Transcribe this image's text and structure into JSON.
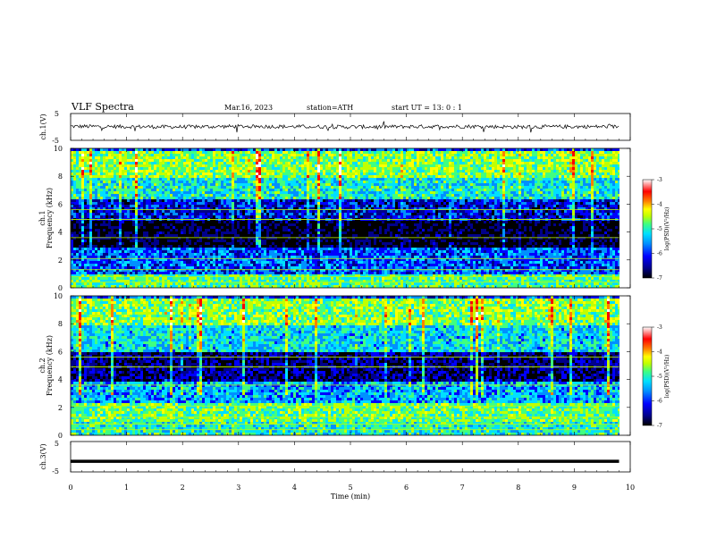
{
  "header": {
    "title": "VLF  Spectra",
    "date": "Mar.16, 2023",
    "station": "station=ATH",
    "start_ut": "start  UT  =   13: 0  : 1"
  },
  "colors": {
    "spectrogram_scale": [
      "#000000",
      "#00008b",
      "#0000ff",
      "#0090ff",
      "#00e0ff",
      "#40ff80",
      "#c0ff00",
      "#ffff00",
      "#ff8000",
      "#ff0000",
      "#ffffff"
    ],
    "trace": "#000000"
  },
  "chart_data": [
    {
      "type": "line",
      "panel": "ch1-waveform",
      "ylabel": "ch.1(V)",
      "ylim": [
        -5,
        5
      ],
      "y_ticks": [
        "5",
        "-5"
      ],
      "x": [
        0,
        1,
        2,
        3,
        4,
        5,
        6,
        7,
        8,
        9,
        9.8
      ],
      "series": [
        {
          "values": [
            0.2,
            0.1,
            0.0,
            0.2,
            0.1,
            0.0,
            0.1,
            0.2,
            0.0,
            0.1,
            0.1
          ]
        }
      ]
    },
    {
      "type": "heatmap",
      "panel": "ch1-spectrogram",
      "ylabel": "ch.1\nFrequency (kHz)",
      "ylim": [
        0,
        10
      ],
      "y_ticks": [
        "10",
        "8",
        "6",
        "4",
        "2",
        "0"
      ],
      "xlim": [
        0,
        10
      ],
      "colorbar": {
        "label": "log(PSD)(V²/Hz)",
        "ticks": [
          "-3",
          "-4",
          "-5",
          "-6",
          "-7"
        ],
        "range": [
          -7,
          -3
        ]
      },
      "bands_khz": [
        {
          "from": 0.0,
          "to": 1.0,
          "level": -5.0
        },
        {
          "from": 1.0,
          "to": 3.0,
          "level": -5.9
        },
        {
          "from": 3.0,
          "to": 5.0,
          "level": -6.8
        },
        {
          "from": 5.0,
          "to": 6.5,
          "level": -6.2
        },
        {
          "from": 6.5,
          "to": 8.0,
          "level": -5.3
        },
        {
          "from": 8.0,
          "to": 10.0,
          "level": -4.8
        }
      ]
    },
    {
      "type": "heatmap",
      "panel": "ch2-spectrogram",
      "ylabel": "ch.2\nFrequency (kHz)",
      "ylim": [
        0,
        10
      ],
      "y_ticks": [
        "10",
        "8",
        "6",
        "4",
        "2",
        "0"
      ],
      "xlim": [
        0,
        10
      ],
      "colorbar": {
        "label": "log(PSD)(V²/Hz)",
        "ticks": [
          "-3",
          "-4",
          "-5",
          "-6",
          "-7"
        ],
        "range": [
          -7,
          -3
        ]
      },
      "bands_khz": [
        {
          "from": 0.0,
          "to": 1.0,
          "level": -5.2
        },
        {
          "from": 1.0,
          "to": 2.5,
          "level": -4.9
        },
        {
          "from": 2.5,
          "to": 4.0,
          "level": -5.6
        },
        {
          "from": 4.0,
          "to": 6.0,
          "level": -6.5
        },
        {
          "from": 6.0,
          "to": 8.0,
          "level": -5.4
        },
        {
          "from": 8.0,
          "to": 10.0,
          "level": -4.8
        }
      ]
    },
    {
      "type": "line",
      "panel": "ch3-waveform",
      "ylabel": "ch.3(V)",
      "ylim": [
        -5,
        5
      ],
      "y_ticks": [
        "5",
        "-5"
      ],
      "x": [
        0,
        9.8
      ],
      "series": [
        {
          "values": [
            -1.5,
            -1.5
          ]
        }
      ]
    }
  ],
  "x_axis": {
    "label": "Time  (min)",
    "ticks": [
      "0",
      "1",
      "2",
      "3",
      "4",
      "5",
      "6",
      "7",
      "8",
      "9",
      "10"
    ],
    "xlim": [
      0,
      10
    ]
  }
}
